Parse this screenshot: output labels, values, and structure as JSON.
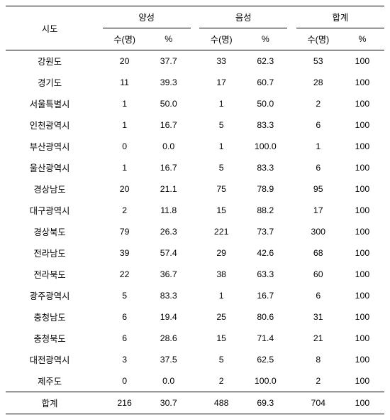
{
  "header": {
    "region": "시도",
    "groups": [
      "양성",
      "음성",
      "합계"
    ],
    "sub_count": "수(명)",
    "sub_pct": "%"
  },
  "rows": [
    {
      "region": "강원도",
      "pos_n": "20",
      "pos_p": "37.7",
      "neg_n": "33",
      "neg_p": "62.3",
      "tot_n": "53",
      "tot_p": "100"
    },
    {
      "region": "경기도",
      "pos_n": "11",
      "pos_p": "39.3",
      "neg_n": "17",
      "neg_p": "60.7",
      "tot_n": "28",
      "tot_p": "100"
    },
    {
      "region": "서울특별시",
      "pos_n": "1",
      "pos_p": "50.0",
      "neg_n": "1",
      "neg_p": "50.0",
      "tot_n": "2",
      "tot_p": "100"
    },
    {
      "region": "인천광역시",
      "pos_n": "1",
      "pos_p": "16.7",
      "neg_n": "5",
      "neg_p": "83.3",
      "tot_n": "6",
      "tot_p": "100"
    },
    {
      "region": "부산광역시",
      "pos_n": "0",
      "pos_p": "0.0",
      "neg_n": "1",
      "neg_p": "100.0",
      "tot_n": "1",
      "tot_p": "100"
    },
    {
      "region": "울산광역시",
      "pos_n": "1",
      "pos_p": "16.7",
      "neg_n": "5",
      "neg_p": "83.3",
      "tot_n": "6",
      "tot_p": "100"
    },
    {
      "region": "경상남도",
      "pos_n": "20",
      "pos_p": "21.1",
      "neg_n": "75",
      "neg_p": "78.9",
      "tot_n": "95",
      "tot_p": "100"
    },
    {
      "region": "대구광역시",
      "pos_n": "2",
      "pos_p": "11.8",
      "neg_n": "15",
      "neg_p": "88.2",
      "tot_n": "17",
      "tot_p": "100"
    },
    {
      "region": "경상북도",
      "pos_n": "79",
      "pos_p": "26.3",
      "neg_n": "221",
      "neg_p": "73.7",
      "tot_n": "300",
      "tot_p": "100"
    },
    {
      "region": "전라남도",
      "pos_n": "39",
      "pos_p": "57.4",
      "neg_n": "29",
      "neg_p": "42.6",
      "tot_n": "68",
      "tot_p": "100"
    },
    {
      "region": "전라북도",
      "pos_n": "22",
      "pos_p": "36.7",
      "neg_n": "38",
      "neg_p": "63.3",
      "tot_n": "60",
      "tot_p": "100"
    },
    {
      "region": "광주광역시",
      "pos_n": "5",
      "pos_p": "83.3",
      "neg_n": "1",
      "neg_p": "16.7",
      "tot_n": "6",
      "tot_p": "100"
    },
    {
      "region": "충청남도",
      "pos_n": "6",
      "pos_p": "19.4",
      "neg_n": "25",
      "neg_p": "80.6",
      "tot_n": "31",
      "tot_p": "100"
    },
    {
      "region": "충청북도",
      "pos_n": "6",
      "pos_p": "28.6",
      "neg_n": "15",
      "neg_p": "71.4",
      "tot_n": "21",
      "tot_p": "100"
    },
    {
      "region": "대전광역시",
      "pos_n": "3",
      "pos_p": "37.5",
      "neg_n": "5",
      "neg_p": "62.5",
      "tot_n": "8",
      "tot_p": "100"
    },
    {
      "region": "제주도",
      "pos_n": "0",
      "pos_p": "0.0",
      "neg_n": "2",
      "neg_p": "100.0",
      "tot_n": "2",
      "tot_p": "100"
    }
  ],
  "total": {
    "label": "합계",
    "pos_n": "216",
    "pos_p": "30.7",
    "neg_n": "488",
    "neg_p": "69.3",
    "tot_n": "704",
    "tot_p": "100"
  }
}
